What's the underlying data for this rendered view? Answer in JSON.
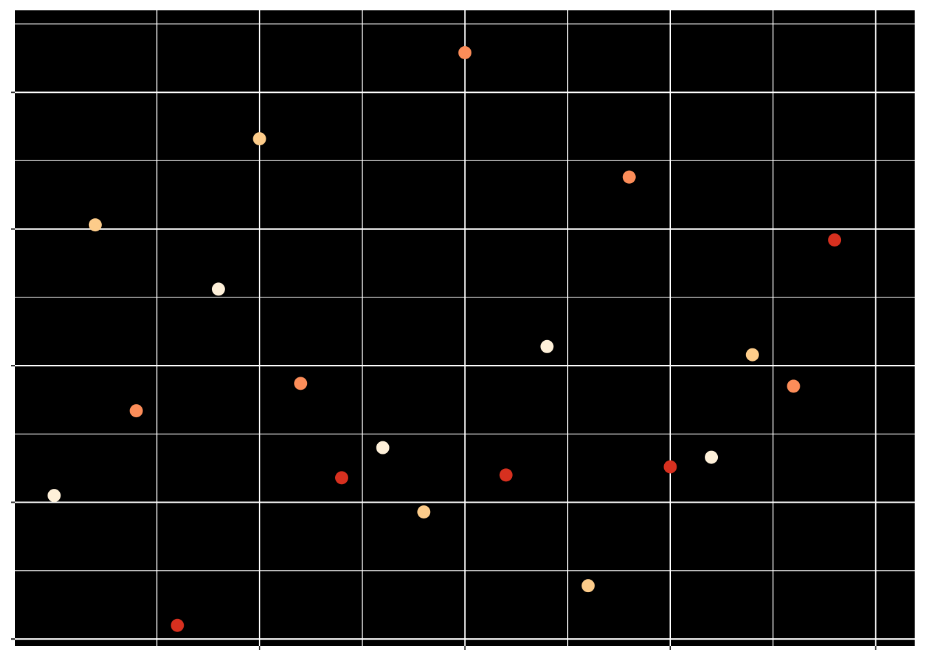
{
  "chart_data": {
    "type": "scatter",
    "title": "",
    "xlabel": "",
    "ylabel": "",
    "xlim": [
      -0.95,
      20.95
    ],
    "ylim": [
      -0.05,
      4.6
    ],
    "x_ticks": [
      5,
      10,
      15,
      20
    ],
    "y_ticks": [
      0,
      1,
      2,
      3,
      4
    ],
    "x_minor_ticks": [
      2.5,
      7.5,
      12.5,
      17.5
    ],
    "y_minor_ticks": [
      0.5,
      1.5,
      2.5,
      3.5,
      4.5
    ],
    "grid": true,
    "legend": "none",
    "colors": {
      "background": "#000000",
      "grid": "#ffffff",
      "tick": "#333333",
      "page": "#ffffff"
    },
    "points": [
      {
        "x": 0,
        "y": 1.05,
        "color": "#FEF0D9"
      },
      {
        "x": 1,
        "y": 3.03,
        "color": "#FDCC8A"
      },
      {
        "x": 2,
        "y": 1.67,
        "color": "#FC8D59"
      },
      {
        "x": 3,
        "y": 0.1,
        "color": "#D7301F"
      },
      {
        "x": 4,
        "y": 2.56,
        "color": "#FEF0D9"
      },
      {
        "x": 5,
        "y": 3.66,
        "color": "#FDCC8A"
      },
      {
        "x": 6,
        "y": 1.87,
        "color": "#FC8D59"
      },
      {
        "x": 7,
        "y": 1.18,
        "color": "#D7301F"
      },
      {
        "x": 8,
        "y": 1.4,
        "color": "#FEF0D9"
      },
      {
        "x": 9,
        "y": 0.93,
        "color": "#FDCC8A"
      },
      {
        "x": 10,
        "y": 4.29,
        "color": "#FC8D59"
      },
      {
        "x": 11,
        "y": 1.2,
        "color": "#D7301F"
      },
      {
        "x": 12,
        "y": 2.14,
        "color": "#FEF0D9"
      },
      {
        "x": 13,
        "y": 0.39,
        "color": "#FDCC8A"
      },
      {
        "x": 14,
        "y": 3.38,
        "color": "#FC8D59"
      },
      {
        "x": 15,
        "y": 1.26,
        "color": "#D7301F"
      },
      {
        "x": 16,
        "y": 1.33,
        "color": "#FEF0D9"
      },
      {
        "x": 17,
        "y": 2.08,
        "color": "#FDCC8A"
      },
      {
        "x": 18,
        "y": 1.85,
        "color": "#FC8D59"
      },
      {
        "x": 19,
        "y": 2.92,
        "color": "#D7301F"
      }
    ]
  }
}
